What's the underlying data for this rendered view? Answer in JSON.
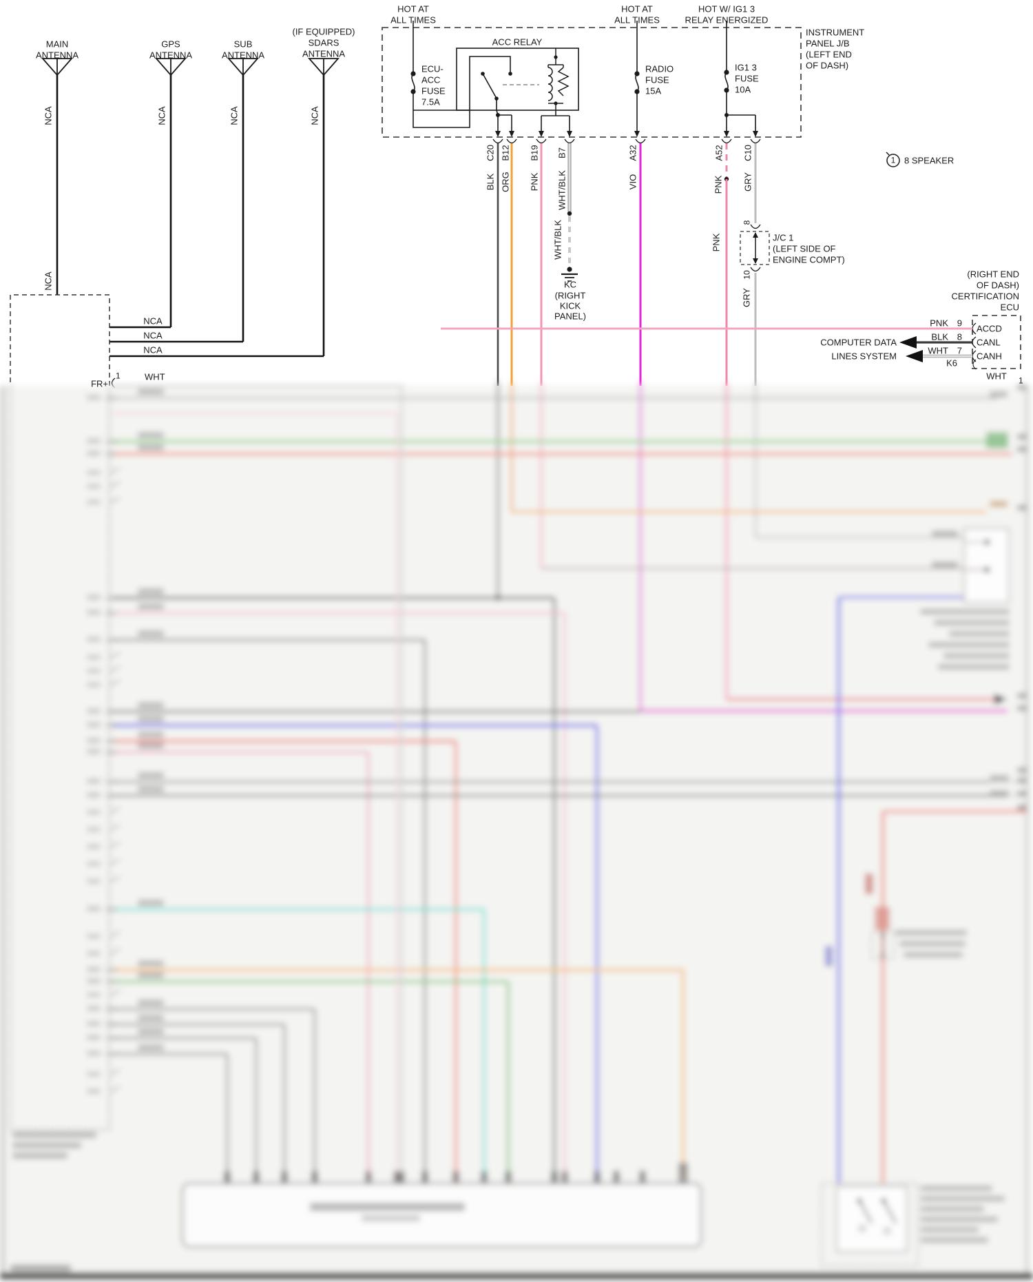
{
  "ant": {
    "main1": "MAIN",
    "main2": "ANTENNA",
    "gps1": "GPS",
    "gps2": "ANTENNA",
    "sub1": "SUB",
    "sub2": "ANTENNA",
    "sd1": "(IF EQUIPPED)",
    "sd2": "SDARS",
    "sd3": "ANTENNA",
    "nca": "NCA"
  },
  "pwr": {
    "hot1": "HOT AT",
    "hot2": "ALL TIMES",
    "hw1": "HOT W/ IG1 3",
    "hw2": "RELAY ENERGIZED"
  },
  "jb": {
    "l1": "INSTRUMENT",
    "l2": "PANEL J/B",
    "l3": "(LEFT END",
    "l4": "OF DASH)",
    "relay": "ACC RELAY",
    "f1a": "ECU-",
    "f1b": "ACC",
    "f1c": "FUSE",
    "f1d": "7.5A",
    "f2a": "RADIO",
    "f2b": "FUSE",
    "f2c": "15A",
    "f3a": "IG1 3",
    "f3b": "FUSE",
    "f3c": "10A"
  },
  "pins": {
    "c20": "C20",
    "b12": "B12",
    "b19": "B19",
    "b7": "B7",
    "a32": "A32",
    "a52": "A52",
    "c10": "C10"
  },
  "wc": {
    "blk": "BLK",
    "org": "ORG",
    "pnk": "PNK",
    "wb": "WHT/BLK",
    "vio": "VIO",
    "gry": "GRY",
    "wht": "WHT"
  },
  "spk": {
    "n": "1",
    "t": "8 SPEAKER"
  },
  "gnd": {
    "l1": "KC",
    "l2": "(RIGHT",
    "l3": "KICK",
    "l4": "PANEL)"
  },
  "jc": {
    "l1": "J/C 1",
    "l2": "(LEFT SIDE OF",
    "l3": "ENGINE COMPT)",
    "p8": "8",
    "p10": "10"
  },
  "ecu": {
    "h1": "(RIGHT END",
    "h2": "OF DASH)",
    "h3": "CERTIFICATION",
    "h4": "ECU",
    "r1c": "PNK",
    "r1n": "9",
    "r1t": "ACCD",
    "r2c": "BLK",
    "r2n": "8",
    "r2t": "CANL",
    "r3c": "WHT",
    "r3n": "7",
    "r3t": "CANH",
    "k6": "K6",
    "wht": "WHT",
    "one": "1"
  },
  "cd": {
    "l1": "COMPUTER DATA",
    "l2": "LINES SYSTEM"
  },
  "rad": {
    "fr": "FR+",
    "p1": "1",
    "wht": "WHT"
  },
  "colors": {
    "blk": "#4a4a4a",
    "org": "#f0a035",
    "pnk": "#f295b5",
    "vio": "#e226d8",
    "gry": "#bdbdbd",
    "grn": "#abd8a6",
    "red": "#f19288",
    "blu": "#8585ee",
    "cyn": "#7ae2d8",
    "wht": "#e0e0e0"
  }
}
